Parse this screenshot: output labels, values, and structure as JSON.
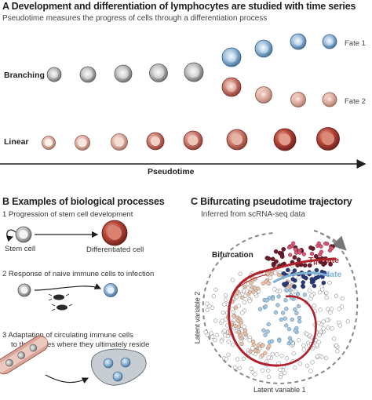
{
  "panel_a": {
    "title": "A  Development and differentiation of lymphocytes are studied with time series",
    "subtitle": "Pseudotime measures the progress of cells through a differentiation process",
    "row_branching": "Branching",
    "row_linear": "Linear",
    "fate1": "Fate 1",
    "fate2": "Fate 2",
    "axis_label": "Pseudotime"
  },
  "panel_b": {
    "title": "B  Examples of biological processes",
    "item1": "1  Progression of stem cell development",
    "stem_cell": "Stem cell",
    "differentiated_cell": "Differentiated cell",
    "item2": "2  Response of naive immune cells to infection",
    "item3_line1": "3  Adaptation of circulating immune cells",
    "item3_line2": "to the tissues where they ultimately reside"
  },
  "panel_c": {
    "title": "C  Bifurcating pseudotime trajectory",
    "subtitle": "Inferred from scRNA-seq data",
    "bifurcation": "Bifurcation",
    "th1_fate": "T",
    "th1_sub": "H",
    "th1_rest": "1 fate",
    "tfh_fate": "T",
    "tfh_sub": "FH",
    "tfh_rest": " fate",
    "ylabel": "Latent variable 2",
    "xlabel": "Latent variable 1"
  },
  "colors": {
    "th1": "#b0202a",
    "tfh": "#7fb0d6",
    "dark_red": "#6d1a2a",
    "navy": "#2a3a7a"
  }
}
